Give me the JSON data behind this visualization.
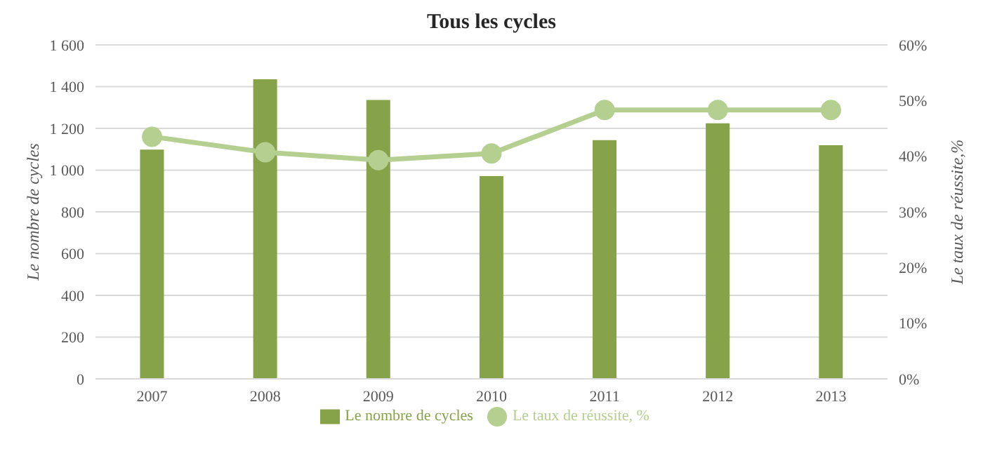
{
  "chart_data": {
    "type": "bar",
    "title": "Tous les cycles",
    "ylabel": "Le nombre de cycles",
    "y2label": "Le taux de réussite,%",
    "categories": [
      "2007",
      "2008",
      "2009",
      "2010",
      "2011",
      "2012",
      "2013"
    ],
    "series": [
      {
        "name": "Le nombre de cycles",
        "color": "#86a34a",
        "values": [
          1095,
          1432,
          1333,
          968,
          1140,
          1221,
          1116
        ]
      },
      {
        "name": "Le taux de réussite, %",
        "type": "line",
        "axis": "y2",
        "color": "#b5cf91",
        "marker": "circle",
        "values": [
          43.5,
          40.7,
          39.3,
          40.5,
          48.3,
          48.3,
          48.3
        ]
      }
    ],
    "ylim": [
      0,
      1600
    ],
    "yticks": [
      0,
      200,
      400,
      600,
      800,
      {
        "value": 1000,
        "label": "1 000"
      },
      {
        "value": 1200,
        "label": "1 200"
      },
      {
        "value": 1400,
        "label": "1 400"
      },
      {
        "value": 1600,
        "label": "1 600"
      }
    ],
    "y2lim": [
      0,
      60
    ],
    "y2ticks": [
      {
        "value": 0,
        "label": "0%"
      },
      {
        "value": 10,
        "label": "10%"
      },
      {
        "value": 20,
        "label": "20%"
      },
      {
        "value": 30,
        "label": "30%"
      },
      {
        "value": 40,
        "label": "40%"
      },
      {
        "value": 50,
        "label": "50%"
      },
      {
        "value": 60,
        "label": "60%"
      }
    ],
    "grid": "y",
    "legend": "bottom"
  }
}
